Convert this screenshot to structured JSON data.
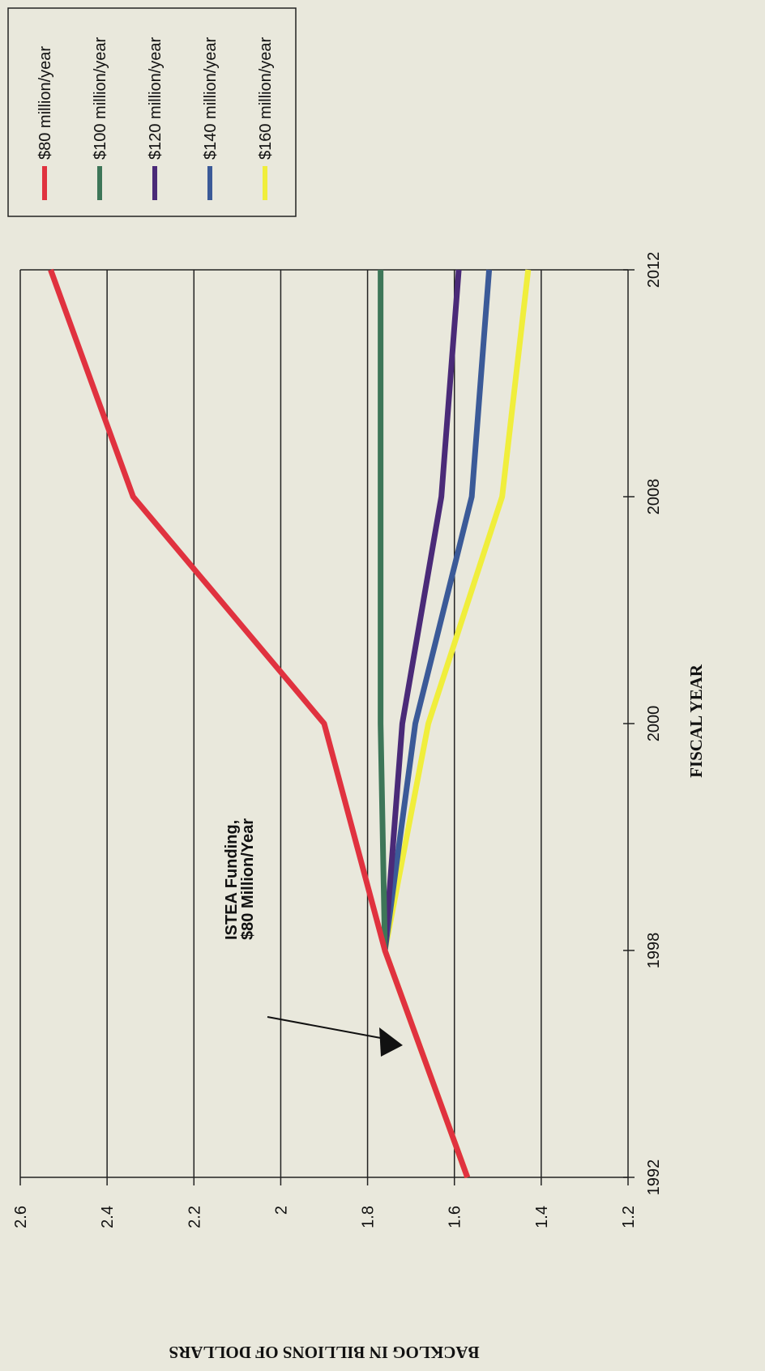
{
  "chart_data": {
    "type": "line",
    "y_label": "BACKLOG IN BILLIONS OF DOLLARS",
    "x_label": "FISCAL YEAR",
    "categories": [
      "1992",
      "1998",
      "2000",
      "2008",
      "2012"
    ],
    "ylim": [
      1.2,
      2.6
    ],
    "yticks": [
      2.6,
      2.4,
      2.2,
      2,
      1.8,
      1.6,
      1.4,
      1.2
    ],
    "grid": true,
    "legend": "top-right",
    "annotation": [
      "ISTEA Funding,",
      "$80 Million/Year"
    ],
    "series": [
      {
        "name": "$80 million/year",
        "color": "#e0323f",
        "values": [
          1.57,
          1.76,
          1.9,
          2.34,
          2.53
        ]
      },
      {
        "name": "$100 million/year",
        "color": "#3d7658",
        "values": [
          null,
          1.76,
          1.77,
          1.77,
          1.77
        ]
      },
      {
        "name": "$120 million/year",
        "color": "#4a2a78",
        "values": [
          null,
          1.76,
          1.72,
          1.63,
          1.59
        ]
      },
      {
        "name": "$140 million/year",
        "color": "#3b5a98",
        "values": [
          null,
          1.76,
          1.69,
          1.56,
          1.52
        ]
      },
      {
        "name": "$160 million/year",
        "color": "#f0ee3c",
        "values": [
          1.57,
          1.76,
          1.66,
          1.49,
          1.43
        ]
      }
    ]
  }
}
